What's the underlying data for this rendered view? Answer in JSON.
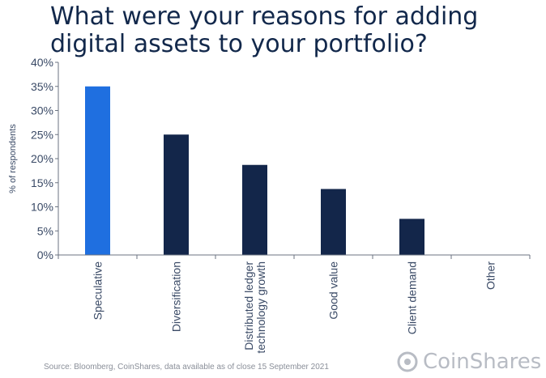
{
  "title": "What were your reasons for adding digital assets to your portfolio?",
  "source": "Source: Bloomberg, CoinShares, data available as of close 15 September 2021",
  "brand": "CoinShares",
  "icons": {
    "brand": "coinshares-logo-icon"
  },
  "chart_data": {
    "type": "bar",
    "ylabel": "% of respondents",
    "xlabel": "",
    "ylim": [
      0,
      40
    ],
    "yticks": [
      0,
      5,
      10,
      15,
      20,
      25,
      30,
      35,
      40
    ],
    "ytick_labels": [
      "0%",
      "5%",
      "10%",
      "15%",
      "20%",
      "25%",
      "30%",
      "35%",
      "40%"
    ],
    "categories": [
      [
        "Speculative"
      ],
      [
        "Diversification"
      ],
      [
        "Distributed ledger",
        "technology growth"
      ],
      [
        "Good value"
      ],
      [
        "Client demand"
      ],
      [
        "Other"
      ]
    ],
    "values": [
      35,
      25,
      18.7,
      13.7,
      7.5,
      0
    ],
    "colors": [
      "#1f6fe0",
      "#13264a",
      "#13264a",
      "#13264a",
      "#13264a",
      "#13264a"
    ],
    "grid": false,
    "legend": "none"
  }
}
